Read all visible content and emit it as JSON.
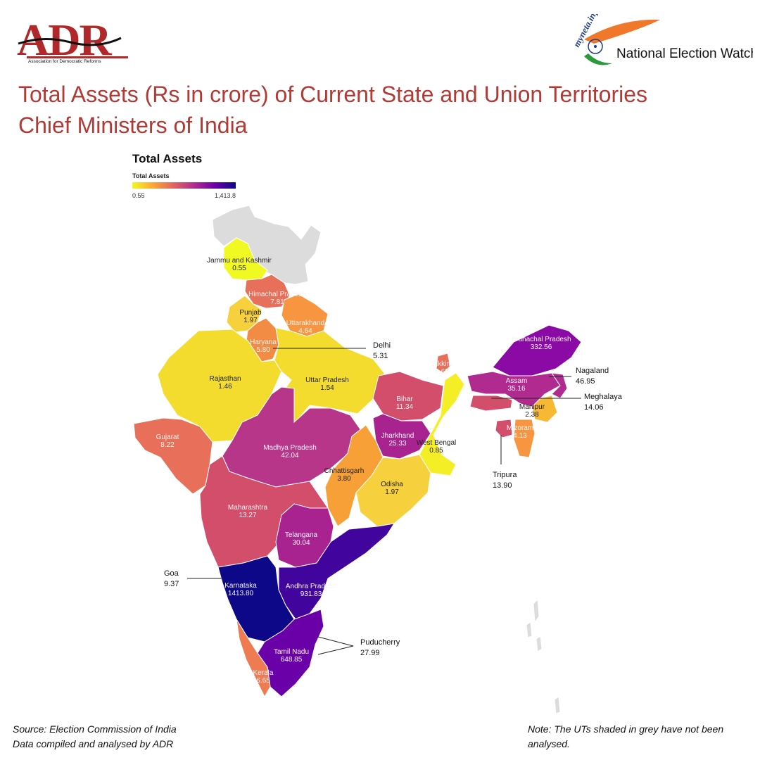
{
  "logos": {
    "adr_name": "ADR",
    "adr_tagline": "Association for Democratic Reforms",
    "myneta_name": "myneta.info",
    "myneta_tagline": "National Election Watch"
  },
  "title_line1": "Total Assets (Rs in crore) of Current State and Union Territories",
  "title_line2": "Chief Ministers of India",
  "legend": {
    "title": "Total Assets",
    "subtitle": "Total Assets",
    "min": "0.55",
    "max": "1,413.8",
    "color_min": "#f0f921",
    "color_max": "#0d0887"
  },
  "regions": [
    {
      "name": "Jammu and Kashmir",
      "value": "0.55",
      "color": "#f0f921"
    },
    {
      "name": "Himachal Pradesh",
      "value": "7.81",
      "color": "#e8705a"
    },
    {
      "name": "Punjab",
      "value": "1.97",
      "color": "#f7d13d"
    },
    {
      "name": "Uttarakhand",
      "value": "4.64",
      "color": "#f89540"
    },
    {
      "name": "Haryana",
      "value": "5.80",
      "color": "#f28c44"
    },
    {
      "name": "Rajasthan",
      "value": "1.46",
      "color": "#f4dc2f"
    },
    {
      "name": "Uttar Pradesh",
      "value": "1.54",
      "color": "#f4dc2f"
    },
    {
      "name": "Gujarat",
      "value": "8.22",
      "color": "#e8705a"
    },
    {
      "name": "Madhya Pradesh",
      "value": "42.04",
      "color": "#b7368a"
    },
    {
      "name": "Bihar",
      "value": "11.34",
      "color": "#d24e6b"
    },
    {
      "name": "Jharkhand",
      "value": "25.33",
      "color": "#a8238f"
    },
    {
      "name": "West Bengal",
      "value": "0.85",
      "color": "#f4ee26"
    },
    {
      "name": "Sikkim",
      "value": "6.69",
      "color": "#e8705a"
    },
    {
      "name": "Chhattisgarh",
      "value": "3.80",
      "color": "#f8a038"
    },
    {
      "name": "Odisha",
      "value": "1.97",
      "color": "#f7d13d"
    },
    {
      "name": "Maharashtra",
      "value": "13.27",
      "color": "#d24e6b"
    },
    {
      "name": "Telangana",
      "value": "30.04",
      "color": "#a8238f"
    },
    {
      "name": "Karnataka",
      "value": "1413.80",
      "color": "#0d0887"
    },
    {
      "name": "Andhra Pradesh",
      "value": "931.83",
      "color": "#41049d"
    },
    {
      "name": "Tamil Nadu",
      "value": "648.85",
      "color": "#6a00a8"
    },
    {
      "name": "Kerala",
      "value": "6.65",
      "color": "#ee7b51"
    },
    {
      "name": "Arunachal Pradesh",
      "value": "332.56",
      "color": "#8b0aa5"
    },
    {
      "name": "Assam",
      "value": "35.16",
      "color": "#b12a90"
    },
    {
      "name": "Manipur",
      "value": "2.38",
      "color": "#f7b934"
    },
    {
      "name": "Mizoram",
      "value": "4.13",
      "color": "#f89540"
    },
    {
      "name": "Nagaland",
      "value": "46.95",
      "color": "#b12a90"
    },
    {
      "name": "Meghalaya",
      "value": "14.06",
      "color": "#d24e6b"
    },
    {
      "name": "Tripura",
      "value": "13.90",
      "color": "#d24e6b"
    },
    {
      "name": "Delhi",
      "value": "5.31",
      "color": "#f28c44"
    },
    {
      "name": "Goa",
      "value": "9.37",
      "color": "#e8705a"
    },
    {
      "name": "Puducherry",
      "value": "27.99",
      "color": "#a8238f"
    }
  ],
  "not_analysed_color": "#dcdcdc",
  "footer": {
    "source": "Source: Election Commission of India",
    "compiled": "Data compiled and analysed by ADR",
    "note": "Note: The UTs shaded in grey have not been analysed."
  }
}
